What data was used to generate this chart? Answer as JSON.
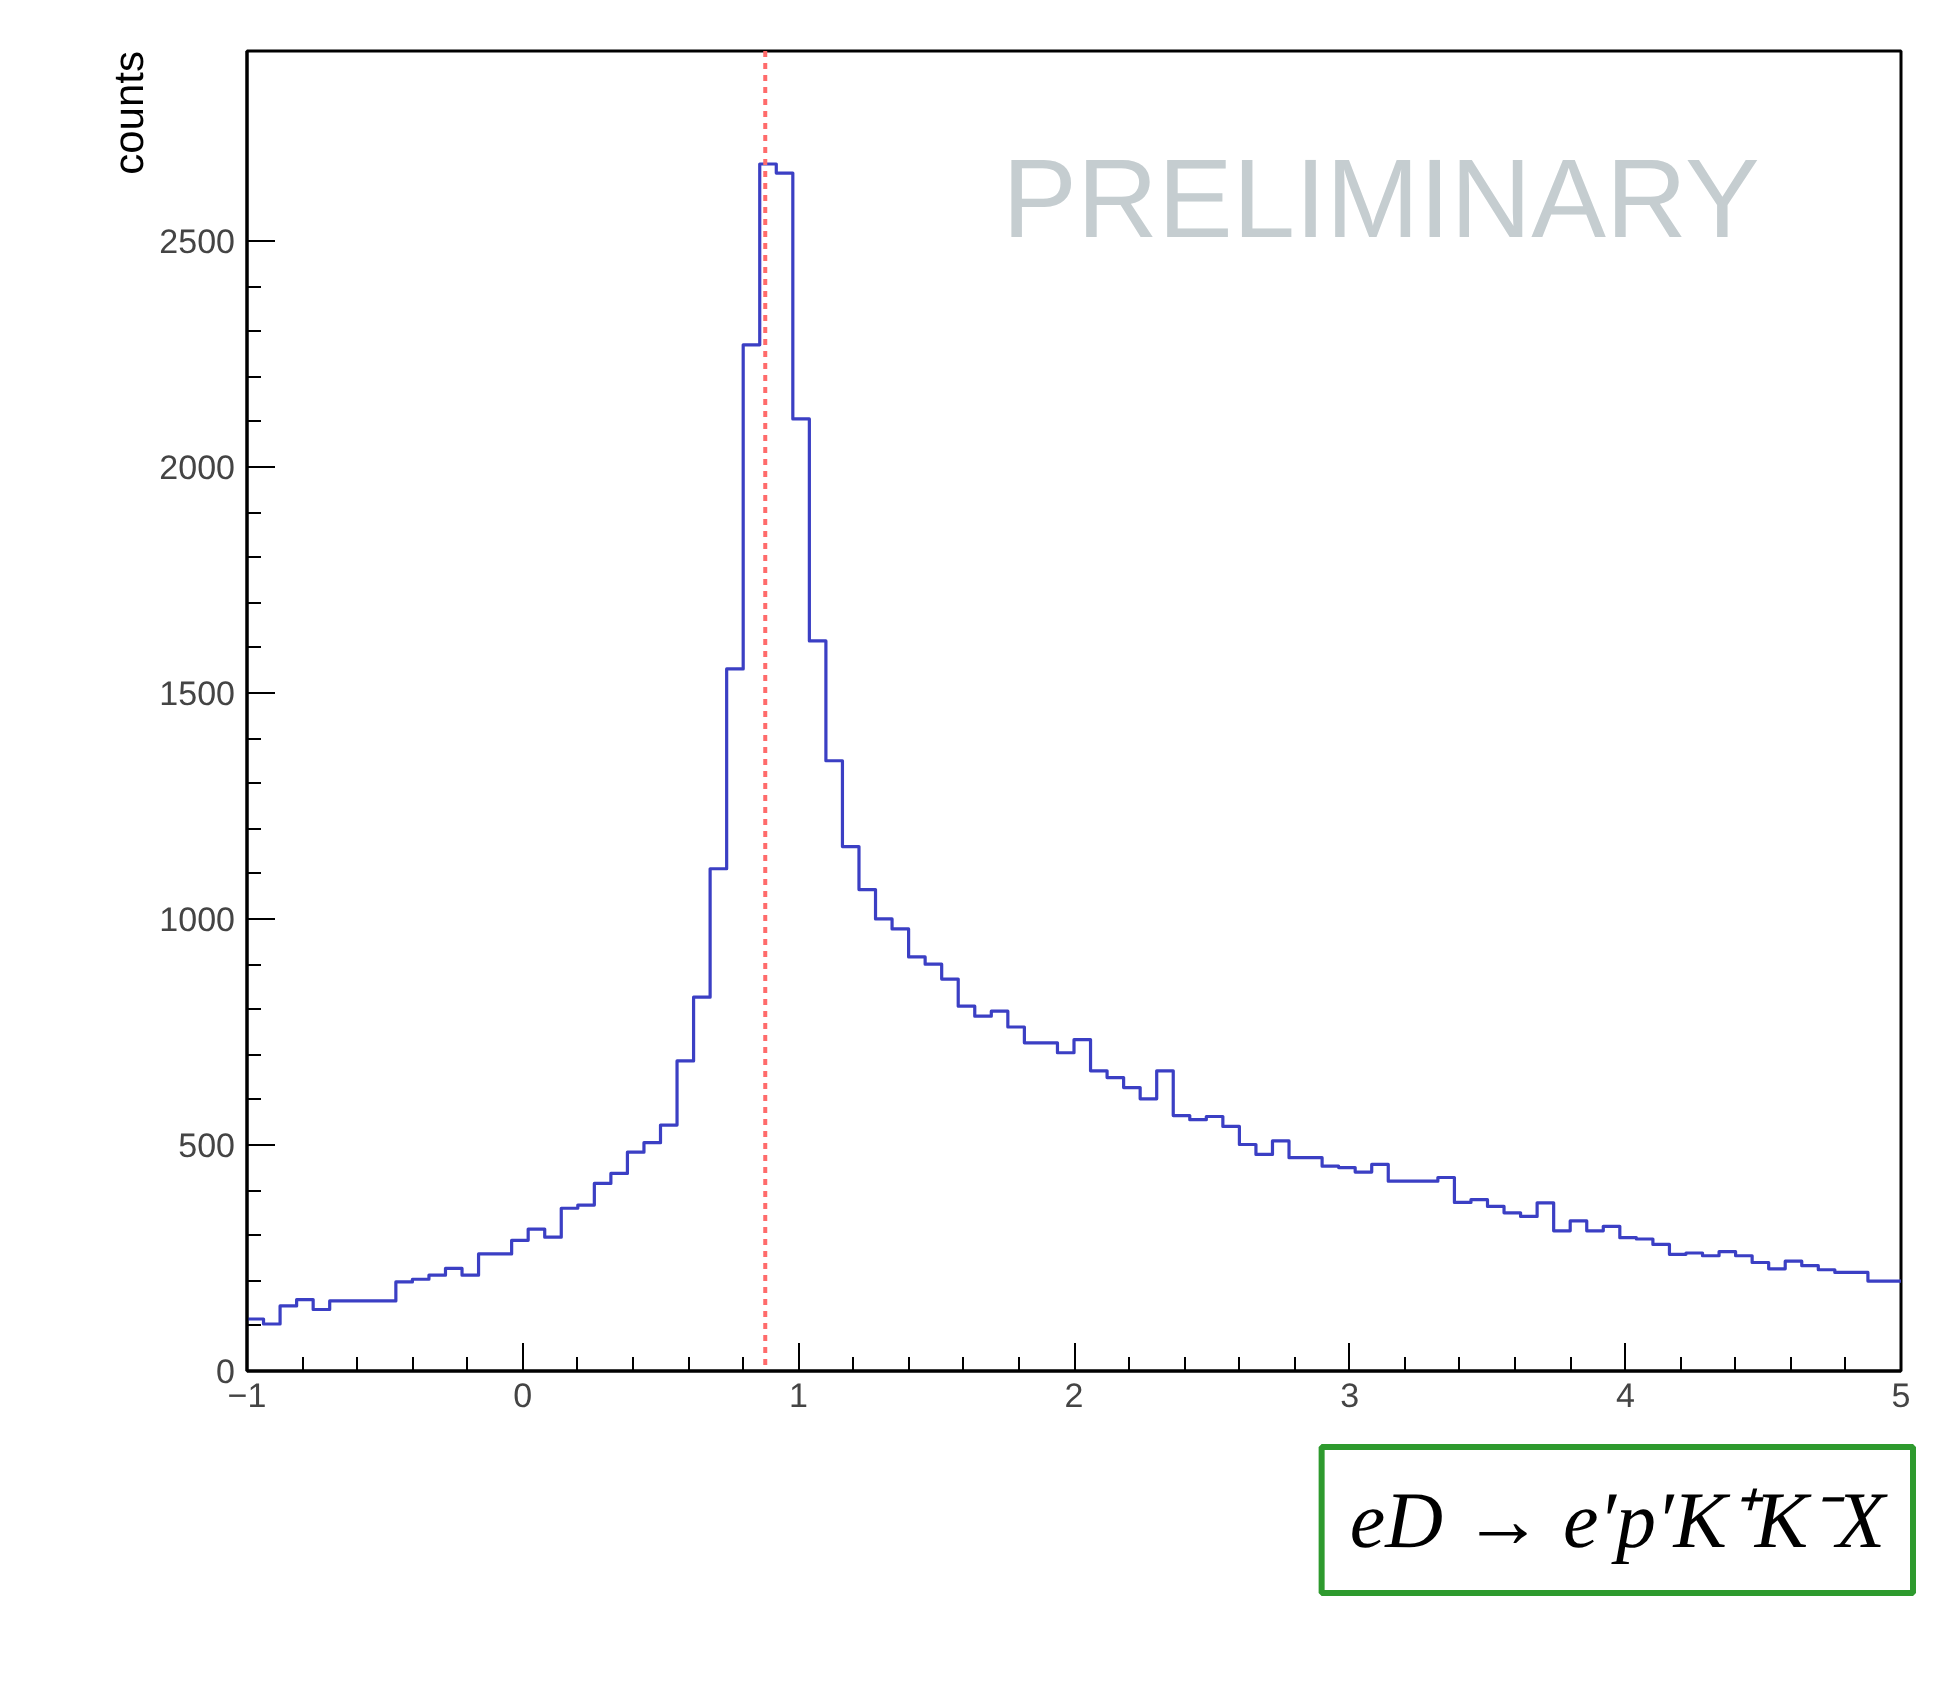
{
  "chart_data": {
    "type": "histogram",
    "ylabel": "counts",
    "bins": [
      -1,
      -0.94,
      -0.88,
      -0.82,
      -0.76,
      -0.7,
      -0.64,
      -0.58,
      -0.52,
      -0.46,
      -0.4,
      -0.34,
      -0.28,
      -0.22,
      -0.16,
      -0.1,
      -0.04,
      0.02,
      0.08,
      0.14,
      0.2,
      0.26,
      0.32,
      0.38,
      0.44,
      0.5,
      0.56,
      0.62,
      0.68,
      0.74,
      0.8,
      0.86,
      0.92,
      0.98,
      1.04,
      1.1,
      1.16,
      1.22,
      1.28,
      1.34,
      1.4,
      1.46,
      1.52,
      1.58,
      1.64,
      1.7,
      1.76,
      1.82,
      1.88,
      1.94,
      2,
      2.06,
      2.12,
      2.18,
      2.24,
      2.3,
      2.36,
      2.42,
      2.48,
      2.54,
      2.6,
      2.66,
      2.72,
      2.78,
      2.84,
      2.9,
      2.96,
      3.02,
      3.08,
      3.14,
      3.2,
      3.26,
      3.32,
      3.38,
      3.44,
      3.5,
      3.56,
      3.62,
      3.68,
      3.74,
      3.8,
      3.86,
      3.92,
      3.98,
      4.04,
      4.1,
      4.16,
      4.22,
      4.28,
      4.34,
      4.4,
      4.46,
      4.52,
      4.58,
      4.64,
      4.7,
      4.76,
      4.82,
      4.88,
      4.94,
      5
    ],
    "values": [
      115,
      104,
      144,
      158,
      136,
      155,
      155,
      155,
      155,
      197,
      203,
      212,
      227,
      212,
      259,
      259,
      289,
      314,
      296,
      360,
      367,
      415,
      437,
      484,
      505,
      544,
      686,
      827,
      1111,
      1553,
      2270,
      2670,
      2650,
      2106,
      1615,
      1350,
      1160,
      1065,
      1000,
      978,
      916,
      900,
      867,
      807,
      785,
      796,
      761,
      726,
      726,
      704,
      733,
      664,
      649,
      627,
      602,
      664,
      565,
      556,
      563,
      541,
      501,
      479,
      509,
      472,
      472,
      453,
      450,
      440,
      457,
      420,
      420,
      420,
      428,
      373,
      379,
      364,
      350,
      342,
      372,
      310,
      332,
      310,
      320,
      295,
      292,
      280,
      258,
      261,
      255,
      264,
      255,
      240,
      226,
      243,
      233,
      224,
      218,
      218,
      199,
      199
    ],
    "color": "#3b3fc4",
    "xlim": [
      -1,
      5
    ],
    "ylim": [
      0,
      2920
    ],
    "xticks": [
      -1,
      0,
      1,
      2,
      3,
      4,
      5
    ],
    "yticks": [
      0,
      500,
      1000,
      1500,
      2000,
      2500
    ],
    "ref_lines": [
      {
        "axis": "x",
        "value": 0.88,
        "color": "#ff6b6b",
        "line_style": "dotted"
      }
    ],
    "annotations": [
      "PRELIMINARY",
      "eD → e′p′K⁺K⁻X"
    ]
  }
}
